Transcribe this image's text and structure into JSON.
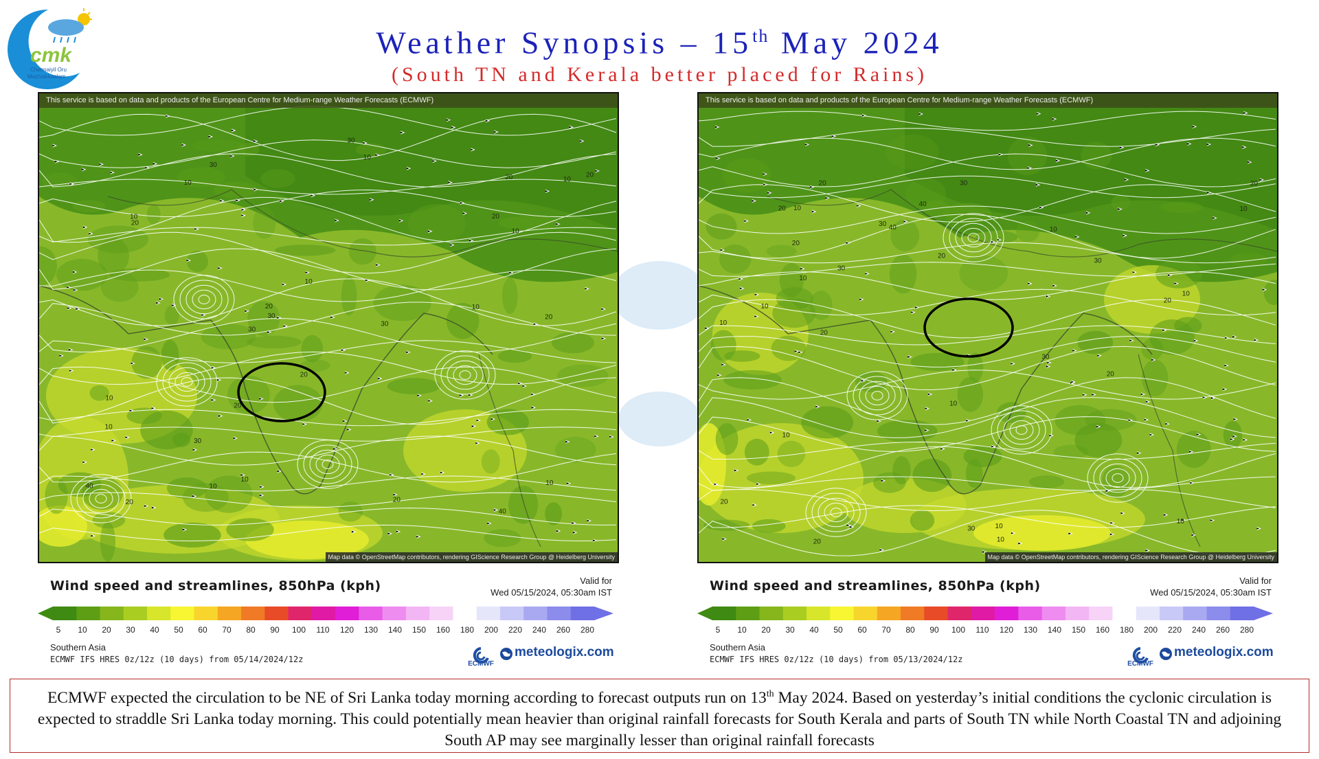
{
  "header": {
    "title_prefix": "Weather Synopsis – 15",
    "title_sup": "th",
    "title_suffix": " May 2024",
    "subtitle": "(South TN and Kerala better placed for Rains)"
  },
  "logo": {
    "text_main": "cmk",
    "text_line1": "Chennaiyil Oru",
    "text_line2": "Mazhaikkaalam"
  },
  "panels": [
    {
      "attribution_top": "This service is based on data and products of the European Centre for Medium-range Weather Forecasts (ECMWF)",
      "attribution_bottom": "Map data © OpenStreetMap contributors, rendering GIScience Research Group @ Heidelberg University",
      "legend_title": "Wind speed and streamlines, 850hPa (kph)",
      "valid_label": "Valid for",
      "valid_date": "Wed 05/15/2024, 05:30am IST",
      "region": "Southern Asia",
      "model_run": "ECMWF IFS HRES 0z/12z (10 days) from 05/14/2024/12z",
      "brand": "meteologix.com",
      "ecmwf_label": "ECMWF",
      "map_labels": [
        "10",
        "20",
        "30",
        "40",
        "10",
        "20",
        "30",
        "10",
        "20",
        "10",
        "20",
        "30",
        "10",
        "20",
        "10",
        "10",
        "20",
        "10",
        "30",
        "20",
        "10",
        "20",
        "10",
        "10",
        "20",
        "10",
        "30",
        "40",
        "30",
        "20"
      ]
    },
    {
      "attribution_top": "This service is based on data and products of the European Centre for Medium-range Weather Forecasts (ECMWF)",
      "attribution_bottom": "Map data © OpenStreetMap contributors, rendering GIScience Research Group @ Heidelberg University",
      "legend_title": "Wind speed and streamlines, 850hPa (kph)",
      "valid_label": "Valid for",
      "valid_date": "Wed 05/15/2024, 05:30am IST",
      "region": "Southern Asia",
      "model_run": "ECMWF IFS HRES 0z/12z (10 days) from 05/13/2024/12z",
      "brand": "meteologix.com",
      "ecmwf_label": "ECMWF",
      "map_labels": [
        "10",
        "30",
        "20",
        "10",
        "20",
        "30",
        "10",
        "20",
        "10",
        "10",
        "20",
        "10",
        "30",
        "10",
        "20",
        "10",
        "20",
        "40",
        "30",
        "10",
        "20",
        "30",
        "40",
        "20",
        "10",
        "20",
        "10",
        "10",
        "20",
        "30"
      ]
    }
  ],
  "scale": {
    "ticks": [
      "5",
      "10",
      "20",
      "30",
      "40",
      "50",
      "60",
      "70",
      "80",
      "90",
      "100",
      "110",
      "120",
      "130",
      "140",
      "150",
      "160",
      "180",
      "200",
      "220",
      "240",
      "260",
      "280"
    ],
    "colors": [
      "#3f8a12",
      "#5d9e15",
      "#86b61c",
      "#aacd22",
      "#d7e62a",
      "#f8f632",
      "#f8d52c",
      "#f5a623",
      "#f07a25",
      "#e84b28",
      "#e0266b",
      "#e01aa5",
      "#e01ed8",
      "#e85ce8",
      "#ee8cef",
      "#f3b6f4",
      "#f6d3f7",
      "#ffffff",
      "#e6e6fb",
      "#c9c9f7",
      "#a9a9f2",
      "#8c8cec",
      "#6f6fe6"
    ]
  },
  "caption": {
    "part1": "ECMWF expected the circulation to be NE of Sri Lanka today morning according to forecast outputs run on 13",
    "sup": "th",
    "part2": " May 2024. Based on yesterday’s initial conditions the cyclonic circulation is expected to straddle Sri Lanka today morning. This could potentially mean heavier than original rainfall forecasts for South Kerala and parts of South TN while North Coastal TN and adjoining South AP may see marginally lesser than original rainfall forecasts"
  }
}
